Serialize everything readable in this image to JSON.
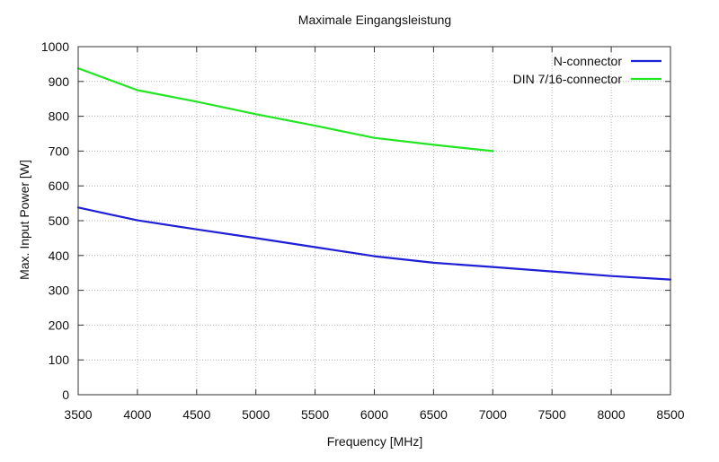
{
  "chart_data": {
    "type": "line",
    "title": "Maximale Eingangsleistung",
    "xlabel": "Frequency [MHz]",
    "ylabel": "Max. Input Power [W]",
    "xlim": [
      3500,
      8500
    ],
    "ylim": [
      0,
      1000
    ],
    "xticks": [
      3500,
      4000,
      4500,
      5000,
      5500,
      6000,
      6500,
      7000,
      7500,
      8000,
      8500
    ],
    "yticks": [
      0,
      100,
      200,
      300,
      400,
      500,
      600,
      700,
      800,
      900,
      1000
    ],
    "grid": true,
    "legend_position": "top-right",
    "series": [
      {
        "name": "N-connector",
        "color": "#1f1fd6",
        "x": [
          3500,
          4000,
          4500,
          5000,
          5500,
          6000,
          6500,
          7000,
          7500,
          8000,
          8500
        ],
        "y": [
          538,
          501,
          475,
          450,
          424,
          398,
          379,
          367,
          354,
          341,
          331
        ]
      },
      {
        "name": "DIN 7/16-connector",
        "color": "#22e622",
        "x": [
          3500,
          4000,
          4500,
          5000,
          5500,
          6000,
          6500,
          7000
        ],
        "y": [
          938,
          875,
          842,
          806,
          773,
          738,
          718,
          700
        ]
      }
    ]
  }
}
